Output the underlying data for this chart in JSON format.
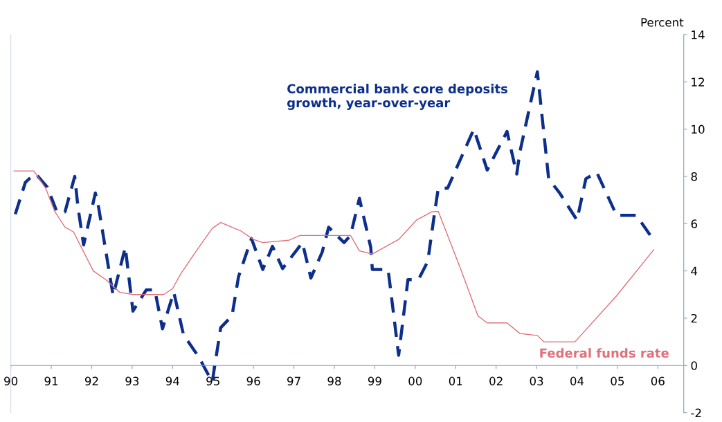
{
  "chart_data": {
    "type": "line",
    "ylabel": "Percent",
    "xlim": [
      1990,
      2006.64
    ],
    "ylim": [
      -2,
      14
    ],
    "xticks": [
      {
        "value": 1990,
        "label": "90"
      },
      {
        "value": 1991,
        "label": "91"
      },
      {
        "value": 1992,
        "label": "92"
      },
      {
        "value": 1993,
        "label": "93"
      },
      {
        "value": 1994,
        "label": "94"
      },
      {
        "value": 1995,
        "label": "95"
      },
      {
        "value": 1996,
        "label": "96"
      },
      {
        "value": 1997,
        "label": "97"
      },
      {
        "value": 1998,
        "label": "98"
      },
      {
        "value": 1999,
        "label": "99"
      },
      {
        "value": 2000,
        "label": "00"
      },
      {
        "value": 2001,
        "label": "01"
      },
      {
        "value": 2002,
        "label": "02"
      },
      {
        "value": 2003,
        "label": "03"
      },
      {
        "value": 2004,
        "label": "04"
      },
      {
        "value": 2005,
        "label": "05"
      },
      {
        "value": 2006,
        "label": "06"
      }
    ],
    "yticks": [
      -2,
      0,
      2,
      4,
      6,
      8,
      10,
      12,
      14
    ],
    "grid": false,
    "legend": false,
    "marker": "none",
    "series": [
      {
        "name": "Commercial bank core deposits growth, year-over-year",
        "color": "#0d2f8c",
        "line_style": "dashed",
        "x": [
          1990.11,
          1990.36,
          1990.52,
          1990.62,
          1990.9,
          1991.14,
          1991.34,
          1991.58,
          1991.66,
          1991.8,
          1992.09,
          1992.17,
          1992.53,
          1992.83,
          1993.02,
          1993.35,
          1993.56,
          1993.75,
          1993.92,
          1994.03,
          1994.27,
          1994.65,
          1994.98,
          1995.19,
          1995.47,
          1995.63,
          1995.95,
          1996.23,
          1996.47,
          1996.72,
          1997.21,
          1997.42,
          1997.7,
          1997.86,
          1998.03,
          1998.24,
          1998.4,
          1998.62,
          1998.9,
          1998.94,
          1999.33,
          1999.59,
          1999.82,
          2000.08,
          2000.31,
          2000.47,
          2000.57,
          2000.8,
          2001.45,
          2001.78,
          2002.27,
          2002.51,
          2002.59,
          2003.02,
          2003.3,
          2003.57,
          2004.0,
          2004.22,
          2004.49,
          2004.98,
          2005.47,
          2005.87
        ],
        "values": [
          6.4,
          7.75,
          8.0,
          8.1,
          7.55,
          6.5,
          6.5,
          8.0,
          6.7,
          5.1,
          7.3,
          6.7,
          2.95,
          5.0,
          2.3,
          3.2,
          3.2,
          1.55,
          2.5,
          3.1,
          1.3,
          0.35,
          -0.7,
          1.6,
          2.1,
          3.75,
          5.37,
          4.06,
          5.04,
          4.1,
          5.2,
          3.7,
          4.8,
          5.85,
          5.55,
          5.2,
          5.5,
          7.07,
          5.0,
          4.06,
          4.06,
          0.43,
          3.63,
          3.63,
          4.4,
          6.35,
          7.5,
          7.5,
          10.0,
          8.27,
          9.9,
          8.1,
          9.05,
          12.43,
          7.9,
          7.3,
          6.15,
          7.9,
          8.17,
          6.35,
          6.35,
          5.37
        ]
      },
      {
        "name": "Federal funds rate",
        "color": "#e0707a",
        "line_style": "solid",
        "x": [
          1990.08,
          1990.57,
          1990.86,
          1991.09,
          1991.34,
          1991.55,
          1992.04,
          1992.37,
          1992.69,
          1993.02,
          1993.78,
          1994.0,
          1994.21,
          1994.65,
          1994.98,
          1995.19,
          1995.68,
          1996.0,
          1996.23,
          1996.88,
          1997.15,
          1998.4,
          1998.62,
          1998.94,
          1999.59,
          2000.03,
          2000.41,
          2000.57,
          2001.12,
          2001.55,
          2001.78,
          2002.27,
          2002.59,
          2003.02,
          2003.18,
          2003.95,
          2004.98,
          2005.9
        ],
        "values": [
          8.23,
          8.23,
          7.5,
          6.5,
          5.85,
          5.65,
          4.0,
          3.6,
          3.1,
          3.0,
          3.0,
          3.25,
          3.9,
          5.0,
          5.8,
          6.05,
          5.7,
          5.33,
          5.2,
          5.3,
          5.5,
          5.5,
          4.85,
          4.72,
          5.33,
          6.15,
          6.5,
          6.52,
          4.1,
          2.1,
          1.8,
          1.8,
          1.35,
          1.27,
          1.0,
          1.0,
          2.95,
          4.9
        ]
      }
    ]
  }
}
